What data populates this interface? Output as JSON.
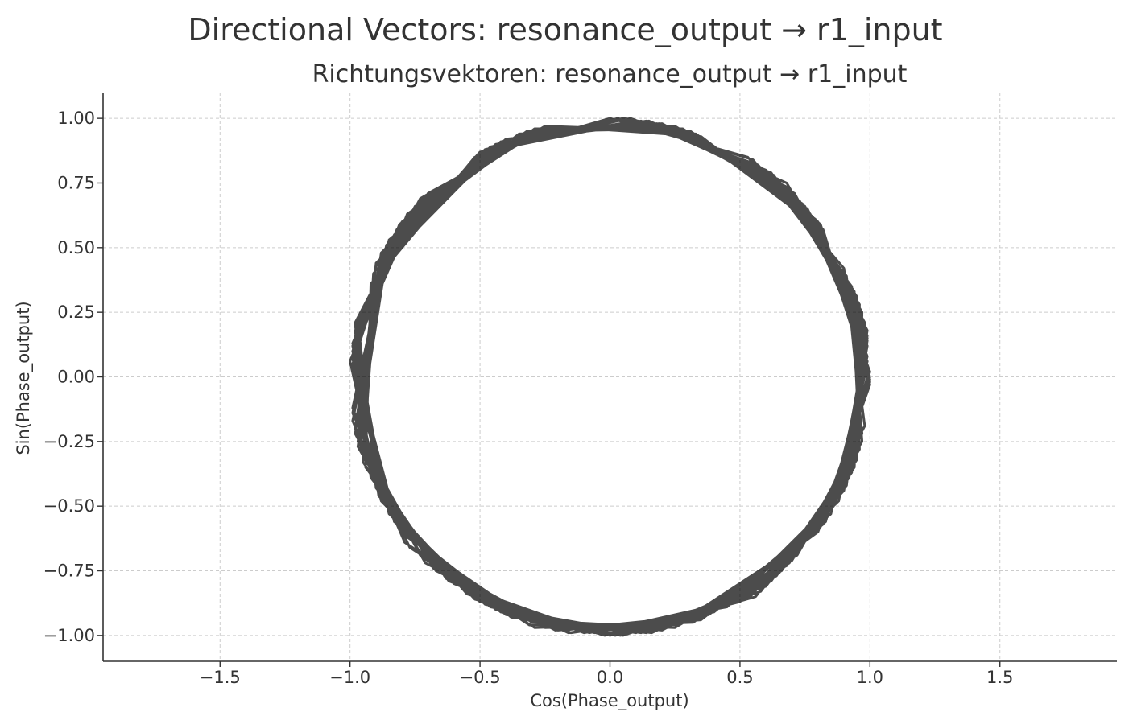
{
  "chart_data": {
    "type": "line",
    "title": "Directional Vectors: resonance_output → r1_input",
    "subtitle": "Richtungsvektoren: resonance_output → r1_input",
    "xlabel": "Cos(Phase_output)",
    "ylabel": "Sin(Phase_output)",
    "xlim": [
      -1.95,
      1.95
    ],
    "ylim": [
      -1.1,
      1.1
    ],
    "aspect": "equal",
    "grid": true,
    "line_color": "#000000",
    "line_opacity": 0.7,
    "x_ticks": [
      -1.5,
      -1.0,
      -0.5,
      0.0,
      0.5,
      1.0,
      1.5
    ],
    "x_tick_labels": [
      "−1.5",
      "−1.0",
      "−0.5",
      "0.0",
      "0.5",
      "1.0",
      "1.5"
    ],
    "y_ticks": [
      1.0,
      0.75,
      0.5,
      0.25,
      0.0,
      -0.25,
      -0.5,
      -0.75,
      -1.0
    ],
    "y_tick_labels": [
      "1.00",
      "0.75",
      "0.50",
      "0.25",
      "0.00",
      "−0.25",
      "−0.50",
      "−0.75",
      "−1.00"
    ],
    "series": [
      {
        "x": [
          1.0,
          0.8,
          0.3,
          -0.25,
          -0.72,
          -0.98,
          -0.92,
          -0.6,
          -0.1,
          0.45,
          0.88,
          0.99,
          0.75,
          0.25,
          -0.35,
          -0.82,
          -0.99,
          -0.85,
          -0.42,
          0.12,
          0.62,
          0.95,
          0.97,
          0.68,
          0.15,
          -0.45,
          -0.9,
          -0.97,
          -0.7,
          -0.2,
          0.38,
          0.83,
          1.0,
          0.78,
          0.28,
          -0.3,
          -0.78,
          -1.0,
          -0.88,
          -0.5,
          0.05,
          0.55,
          0.92,
          0.98,
          0.72,
          0.2,
          -0.38,
          -0.85,
          -0.99,
          -0.8,
          -0.33,
          0.22,
          0.7,
          0.96,
          0.94,
          0.6,
          0.08,
          -0.48,
          -0.9,
          -0.96,
          -0.66,
          -0.15,
          0.4,
          0.85,
          0.99,
          0.74,
          0.24,
          -0.32,
          -0.8,
          -0.99,
          -0.86,
          -0.46,
          0.1,
          0.6,
          0.93,
          0.97,
          0.65,
          0.12,
          -0.42,
          -0.88,
          -0.98,
          -0.74,
          -0.25,
          0.32,
          0.8,
          1.0,
          0.82,
          0.35,
          -0.22,
          -0.7,
          -0.97,
          -0.9,
          -0.55,
          -0.02,
          0.5,
          0.9,
          0.99,
          0.76,
          0.27,
          -0.3,
          -0.78,
          -0.99,
          -0.84,
          -0.4,
          0.16,
          0.66,
          0.95,
          0.95,
          0.62,
          0.1,
          -0.44,
          -0.87,
          -0.97,
          -0.7,
          -0.2,
          0.36,
          0.82,
          0.99,
          0.8,
          0.3,
          -0.27,
          -0.75,
          -0.98,
          -0.88,
          -0.5,
          0.04,
          0.56,
          0.92,
          0.98,
          0.7,
          0.18,
          -0.4,
          -0.86,
          -0.99,
          -0.78,
          -0.3,
          0.25,
          0.72,
          0.97,
          0.92,
          0.57,
          0.05,
          -0.5,
          -0.91,
          -0.95,
          -0.63,
          -0.1,
          0.43,
          0.86,
          0.99,
          0.73,
          0.22,
          -0.34,
          -0.81,
          -0.99,
          -0.85,
          -0.44,
          0.12,
          0.62,
          0.94,
          0.96,
          0.66,
          0.14,
          -0.41,
          -0.87,
          -0.98,
          -0.73,
          -0.23,
          0.33,
          0.8,
          1.0,
          0.81,
          0.33,
          -0.24,
          -0.73,
          -0.98,
          -0.89,
          -0.52,
          0.0,
          0.52,
          0.9,
          0.99,
          0.77,
          0.28,
          -0.29,
          -0.77,
          -0.99,
          -0.83,
          -0.38,
          0.18,
          0.68,
          0.96,
          0.94,
          0.6,
          0.08,
          -0.46,
          -0.88,
          -0.96,
          -0.68,
          -0.18,
          0.38,
          0.83,
          0.99,
          0.79,
          0.31,
          -0.26,
          -0.74,
          -0.98,
          -0.87,
          -0.48,
          0.06,
          0.58,
          0.93,
          0.97,
          0.69,
          0.17,
          -0.39,
          -0.85,
          -0.99,
          -0.79,
          -0.31,
          0.26,
          0.73,
          0.97,
          0.91,
          0.55,
          0.03,
          -0.5,
          -0.9,
          -0.95,
          -0.62,
          -0.08,
          0.45,
          0.87,
          0.99,
          0.72,
          0.2,
          -0.36,
          -0.82,
          -0.99,
          -0.84,
          -0.42,
          0.14,
          0.64,
          0.95,
          0.96,
          0.64,
          0.12,
          -0.43,
          -0.86,
          -0.97,
          -0.72,
          -0.21,
          0.35,
          0.81,
          1.0,
          0.8,
          0.32,
          -0.24,
          -0.73,
          -0.98,
          -0.89,
          -0.52,
          0.02,
          0.54,
          0.91,
          0.98,
          0.75,
          0.25,
          -0.32,
          -0.79,
          -0.99,
          -0.82,
          -0.36,
          0.2,
          0.69,
          0.96,
          0.93,
          0.58,
          0.06,
          -0.47,
          -0.89,
          -0.96,
          -0.67,
          -0.16,
          0.39,
          0.84,
          0.99,
          0.77,
          0.27,
          -0.28,
          -0.76,
          -0.98,
          -0.86,
          -0.46,
          0.08,
          0.6,
          0.94,
          0.97,
          0.68,
          0.15,
          -0.4,
          -0.86,
          -0.98,
          -0.77,
          -0.29,
          0.27,
          0.74,
          0.98,
          0.9,
          0.53,
          0.0,
          -0.52,
          -0.92,
          -0.94,
          -0.6,
          -0.06,
          0.47,
          0.88,
          0.99,
          0.71,
          0.19,
          -0.37,
          -0.83,
          -0.99,
          -0.83,
          -0.4,
          0.16,
          0.65,
          0.95,
          0.95,
          0.63,
          0.11,
          -0.44,
          -0.87,
          -0.97,
          -0.71,
          -0.2,
          0.36,
          0.82,
          1.0
        ],
        "y": [
          0.0,
          0.6,
          0.95,
          0.97,
          0.69,
          0.18,
          -0.39,
          -0.8,
          -0.99,
          -0.89,
          -0.48,
          0.12,
          0.66,
          0.97,
          0.94,
          0.57,
          0.05,
          -0.53,
          -0.91,
          -0.99,
          -0.78,
          -0.3,
          0.25,
          0.73,
          0.99,
          0.89,
          0.44,
          -0.23,
          -0.71,
          -0.98,
          -0.92,
          -0.55,
          0.02,
          0.62,
          0.96,
          0.95,
          0.63,
          0.06,
          -0.48,
          -0.87,
          -1.0,
          -0.83,
          -0.39,
          0.2,
          0.69,
          0.98,
          0.92,
          0.53,
          -0.12,
          -0.6,
          -0.94,
          -0.97,
          -0.71,
          -0.27,
          0.33,
          0.8,
          1.0,
          0.88,
          0.43,
          -0.28,
          -0.75,
          -0.99,
          -0.91,
          -0.53,
          0.08,
          0.67,
          0.97,
          0.95,
          0.6,
          0.12,
          -0.5,
          -0.89,
          -0.99,
          -0.8,
          -0.37,
          0.22,
          0.76,
          0.99,
          0.91,
          0.48,
          -0.2,
          -0.67,
          -0.97,
          -0.95,
          -0.6,
          -0.03,
          0.57,
          0.93,
          0.97,
          0.71,
          0.22,
          -0.43,
          -0.84,
          -1.0,
          -0.87,
          -0.44,
          0.16,
          0.65,
          0.96,
          0.95,
          0.62,
          0.13,
          -0.54,
          -0.92,
          -0.99,
          -0.75,
          -0.31,
          0.3,
          0.79,
          0.99,
          0.9,
          0.47,
          -0.24,
          -0.71,
          -0.98,
          -0.93,
          -0.57,
          0.0,
          0.6,
          0.95,
          0.96,
          0.66,
          0.2,
          -0.47,
          -0.87,
          -1.0,
          -0.85,
          -0.39,
          0.21,
          0.71,
          0.98,
          0.92,
          0.51,
          -0.14,
          -0.62,
          -0.95,
          -0.97,
          -0.69,
          -0.25,
          0.36,
          0.82,
          1.0,
          0.87,
          0.4,
          -0.31,
          -0.78,
          -0.99,
          -0.89,
          -0.5,
          0.12,
          0.68,
          0.97,
          0.94,
          0.59,
          0.1,
          -0.52,
          -0.9,
          -0.99,
          -0.79,
          -0.34,
          0.26,
          0.74,
          0.99,
          0.9,
          0.49,
          -0.22,
          -0.69,
          -0.97,
          -0.94,
          -0.59,
          -0.02,
          0.59,
          0.94,
          0.97,
          0.69,
          0.21,
          -0.45,
          -0.85,
          -1.0,
          -0.86,
          -0.43,
          0.14,
          0.63,
          0.96,
          0.96,
          0.6,
          0.1,
          -0.56,
          -0.93,
          -0.98,
          -0.73,
          -0.28,
          0.33,
          0.8,
          1.0,
          0.89,
          0.45,
          -0.26,
          -0.74,
          -0.98,
          -0.92,
          -0.56,
          0.04,
          0.61,
          0.95,
          0.96,
          0.65,
          0.18,
          -0.49,
          -0.88,
          -0.99,
          -0.83,
          -0.36,
          0.24,
          0.73,
          0.98,
          0.92,
          0.5,
          -0.17,
          -0.64,
          -0.96,
          -0.96,
          -0.66,
          -0.22,
          0.39,
          0.84,
          1.0,
          0.86,
          0.38,
          -0.33,
          -0.79,
          -0.99,
          -0.88,
          -0.48,
          0.15,
          0.69,
          0.98,
          0.93,
          0.57,
          0.07,
          -0.54,
          -0.91,
          -0.99,
          -0.77,
          -0.32,
          0.28,
          0.76,
          0.99,
          0.89,
          0.46,
          -0.25,
          -0.7,
          -0.98,
          -0.94,
          -0.58,
          -0.01,
          0.58,
          0.94,
          0.97,
          0.68,
          0.2,
          -0.46,
          -0.86,
          -1.0,
          -0.85,
          -0.42,
          0.18,
          0.66,
          0.97,
          0.95,
          0.58,
          0.08,
          -0.57,
          -0.93,
          -0.98,
          -0.72,
          -0.26,
          0.35,
          0.81,
          1.0,
          0.88,
          0.43,
          -0.28,
          -0.75,
          -0.99,
          -0.91,
          -0.53,
          0.06,
          0.63,
          0.96,
          0.96,
          0.63,
          0.16,
          -0.5,
          -0.89,
          -0.99,
          -0.81,
          -0.35,
          0.25,
          0.75,
          0.99,
          0.91,
          0.48,
          -0.2,
          -0.66,
          -0.97,
          -0.95,
          -0.64,
          -0.19,
          0.42,
          0.85,
          1.0,
          0.85,
          0.36,
          -0.35,
          -0.8,
          -0.99,
          -0.87,
          -0.46,
          0.18,
          0.71,
          0.98,
          0.92,
          0.55,
          0.05,
          -0.55,
          -0.92,
          -0.99,
          -0.76,
          -0.3,
          0.31,
          0.78,
          0.99,
          0.88,
          0.44,
          -0.27,
          -0.72,
          -0.98,
          -0.93,
          -0.57,
          0.0
        ]
      }
    ]
  }
}
